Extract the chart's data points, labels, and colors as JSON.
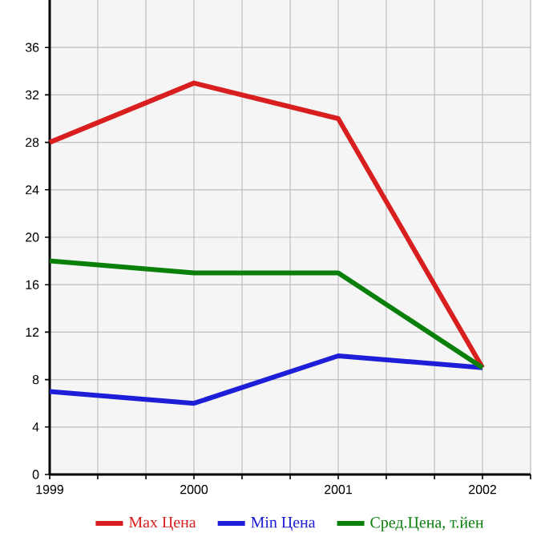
{
  "chart_data": {
    "type": "line",
    "x": [
      1999,
      2000,
      2001,
      2002
    ],
    "series": [
      {
        "name": "Max Цена",
        "color": "#d81e1e",
        "values": [
          28,
          33,
          30,
          9
        ]
      },
      {
        "name": "Min Цена",
        "color": "#1e1ed8",
        "values": [
          7,
          6,
          10,
          9
        ]
      },
      {
        "name": "Сред.Цена, т.йен",
        "color": "#0a800a",
        "values": [
          18,
          17,
          17,
          9
        ]
      }
    ],
    "xlim": [
      1999,
      2002.333
    ],
    "xticks": [
      1999,
      {
        "value": 1999.333,
        "label": null
      },
      {
        "value": 1999.667,
        "label": null
      },
      2000,
      {
        "value": 2000.333,
        "label": null
      },
      {
        "value": 2000.667,
        "label": null
      },
      2001,
      {
        "value": 2001.333,
        "label": null
      },
      {
        "value": 2001.667,
        "label": null
      },
      2002,
      {
        "value": 2002.333,
        "label": null
      }
    ],
    "ylim": [
      0,
      40
    ],
    "yticks": [
      0,
      4,
      8,
      12,
      16,
      20,
      24,
      28,
      32,
      36
    ],
    "grid": true,
    "legend": "bottom",
    "marker": "none",
    "line_style": "solid"
  }
}
